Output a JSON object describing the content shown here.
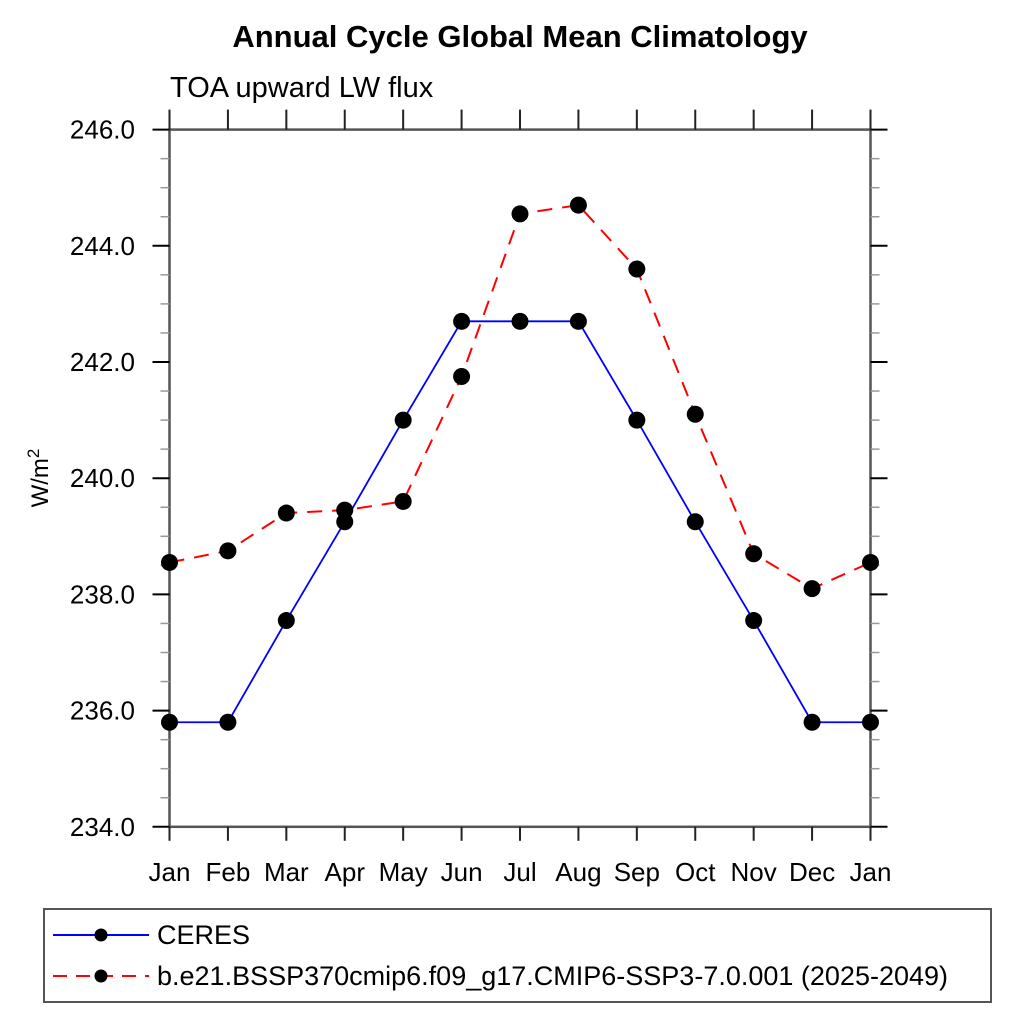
{
  "chart_data": {
    "type": "line",
    "title": "Annual Cycle Global Mean Climatology",
    "subtitle": "TOA upward LW flux",
    "ylabel": "W/m²",
    "ylabel_base": "W/m",
    "ylabel_sup": "2",
    "categories": [
      "Jan",
      "Feb",
      "Mar",
      "Apr",
      "May",
      "Jun",
      "Jul",
      "Aug",
      "Sep",
      "Oct",
      "Nov",
      "Dec",
      "Jan"
    ],
    "ylim": [
      234.0,
      246.0
    ],
    "y_major_ticks": [
      {
        "value": 246.0,
        "label": "246.0"
      },
      {
        "value": 244.0,
        "label": "244.0"
      },
      {
        "value": 242.0,
        "label": "242.0"
      },
      {
        "value": 240.0,
        "label": "240.0"
      },
      {
        "value": 238.0,
        "label": "238.0"
      },
      {
        "value": 236.0,
        "label": "236.0"
      },
      {
        "value": 234.0,
        "label": "234.0"
      }
    ],
    "y_minor_step": 0.5,
    "grid": false,
    "legend_position": "bottom-left-box",
    "series": [
      {
        "name": "CERES",
        "color": "#0000ff",
        "line_style": "solid",
        "marker": "filled-circle",
        "marker_color": "#000000",
        "values": [
          235.8,
          235.8,
          237.55,
          239.25,
          241.0,
          242.7,
          242.7,
          242.7,
          241.0,
          239.25,
          237.55,
          235.8,
          235.8
        ]
      },
      {
        "name": "b.e21.BSSP370cmip6.f09_g17.CMIP6-SSP3-7.0.001 (2025-2049)",
        "color": "#ff0000",
        "line_style": "dashed",
        "marker": "filled-circle",
        "marker_color": "#000000",
        "values": [
          238.55,
          238.75,
          239.4,
          239.45,
          239.6,
          241.75,
          244.55,
          244.7,
          243.6,
          241.1,
          238.7,
          238.1,
          238.55
        ]
      }
    ]
  },
  "colors": {
    "axis_frame": "#555555",
    "major_tick": "#000000",
    "minor_tick": "#999999",
    "text": "#000000"
  }
}
